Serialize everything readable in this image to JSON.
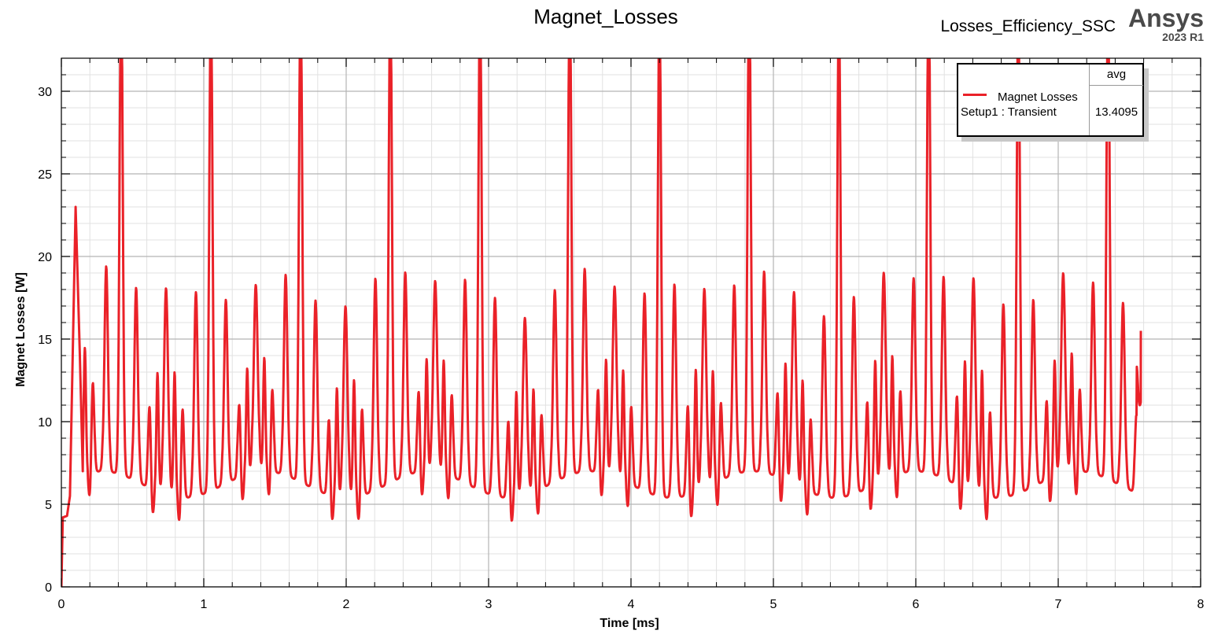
{
  "header": {
    "title": "Magnet_Losses",
    "project": "Losses_Efficiency_SSC",
    "brand": "Ansys",
    "version": "2023 R1"
  },
  "legend": {
    "column": "avg",
    "series_name": "Magnet Losses",
    "series_setup": "Setup1 : Transient",
    "series_value": "13.4095"
  },
  "colors": {
    "series": "#ea2128",
    "grid_major": "#b4b4b4",
    "grid_minor": "#e1e1e1"
  },
  "chart_data": {
    "type": "line",
    "title": "Magnet_Losses",
    "xlabel": "Time [ms]",
    "ylabel": "Magnet Losses [W]",
    "xlim": [
      0,
      8
    ],
    "ylim": [
      0,
      32
    ],
    "xticks": [
      0,
      1,
      2,
      3,
      4,
      5,
      6,
      7,
      8
    ],
    "yticks": [
      0,
      5,
      10,
      15,
      20,
      25,
      30
    ],
    "grid": true,
    "legend_position": "top-right",
    "series": [
      {
        "name": "Magnet Losses",
        "setup": "Setup1 : Transient",
        "avg": 13.4095,
        "x_end": 7.58,
        "period_ms": 0.63,
        "first_peak_ms": 0.42,
        "harmonic_period_ms": 0.315,
        "spike_peak_w": 36,
        "main_peak_w": 20.5,
        "side_peak_w": 13,
        "trough_w": [
          4,
          8
        ],
        "startup": [
          [
            0.0,
            0.0
          ],
          [
            0.01,
            4.2
          ],
          [
            0.04,
            4.3
          ],
          [
            0.06,
            5.5
          ],
          [
            0.1,
            23.0
          ],
          [
            0.13,
            14.0
          ],
          [
            0.15,
            7.0
          ]
        ],
        "end_value": 15.5
      }
    ]
  }
}
